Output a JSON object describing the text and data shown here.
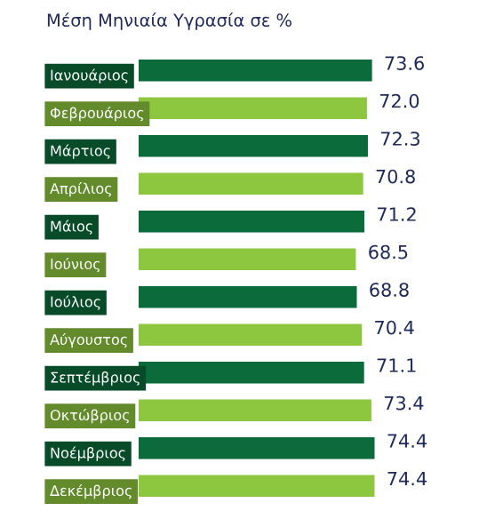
{
  "chart_data": {
    "type": "bar",
    "orientation": "horizontal",
    "title": "Μέση Μηνιαία Υγρασία σε %",
    "categories": [
      "Ιανουάριος",
      "Φεβρουάριος",
      "Μάρτιος",
      "Απρίλιος",
      "Μάιος",
      "Ιούνιος",
      "Ιούλιος",
      "Αύγουστος",
      "Σεπτέμβριος",
      "Οκτώβριος",
      "Νοέμβριος",
      "Δεκέμβριος"
    ],
    "values": [
      73.6,
      72.0,
      72.3,
      70.8,
      71.2,
      68.5,
      68.8,
      70.4,
      71.1,
      73.4,
      74.4,
      74.4
    ],
    "colors": [
      "#0b6b3a",
      "#8dc63f",
      "#0b6b3a",
      "#8dc63f",
      "#0b6b3a",
      "#8dc63f",
      "#0b6b3a",
      "#8dc63f",
      "#0b6b3a",
      "#8dc63f",
      "#0b6b3a",
      "#8dc63f"
    ],
    "value_labels": [
      "73.6",
      "72.0",
      "72.3",
      "70.8",
      "71.2",
      "68.5",
      "68.8",
      "70.4",
      "71.1",
      "73.4",
      "74.4",
      "74.4"
    ]
  }
}
